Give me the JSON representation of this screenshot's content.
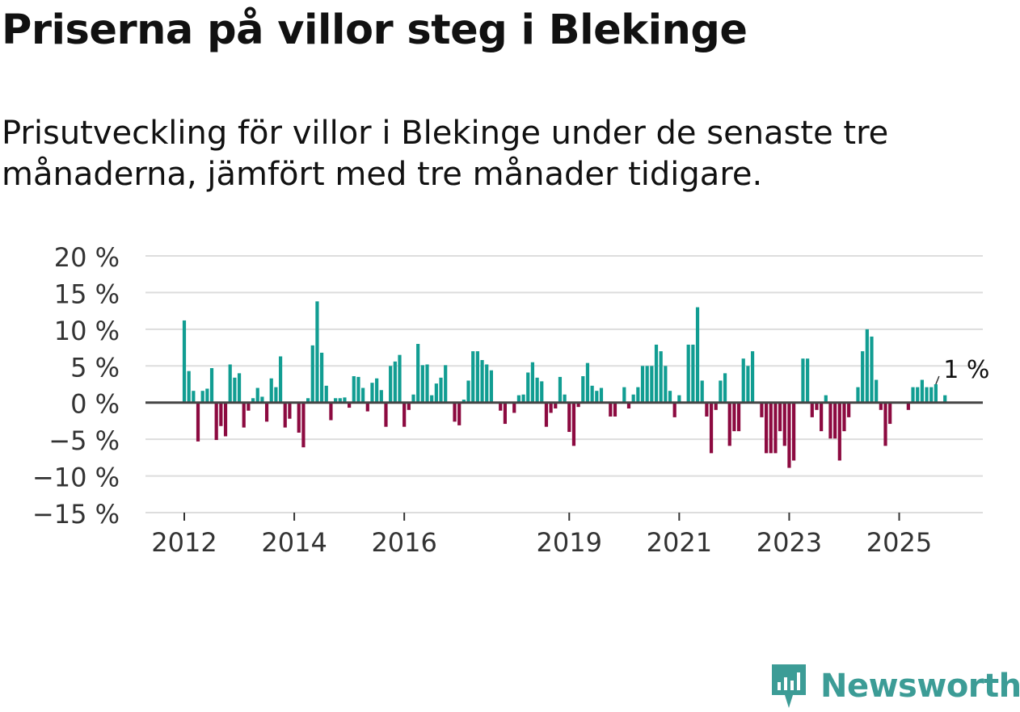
{
  "title": "Priserna på villor steg i Blekinge",
  "subtitle": "Prisutveckling för villor i Blekinge under de senaste tre månaderna, jämfört med tre månader tidigare.",
  "brand": "Newsworthy",
  "colors": {
    "positive": "#119d92",
    "negative": "#8c0a40",
    "grid": "#dddddd",
    "zero": "#444444",
    "brand": "#3c9c96"
  },
  "chart_data": {
    "type": "bar",
    "ylim": [
      -15,
      20
    ],
    "yticks": [
      "20 %",
      "15 %",
      "10 %",
      "5 %",
      "0 %",
      "−5 %",
      "−10 %",
      "−15 %"
    ],
    "xticks": [
      "2012",
      "2014",
      "2016",
      "2019",
      "2021",
      "2023",
      "2025"
    ],
    "xtick_positions": [
      0,
      24,
      48,
      84,
      108,
      132,
      156
    ],
    "annotation": "1 %",
    "start": "2012-01",
    "unit": "%",
    "values": [
      11.2,
      4.3,
      1.6,
      -5.3,
      1.6,
      1.9,
      4.7,
      -5.1,
      -3.2,
      -4.6,
      5.2,
      3.4,
      4,
      -3.4,
      -1.1,
      0.6,
      2,
      0.8,
      -2.6,
      3.3,
      2.1,
      6.3,
      -3.4,
      -2.2,
      0,
      -4.1,
      -6.1,
      0.6,
      7.8,
      13.8,
      6.8,
      2.3,
      -2.4,
      0.6,
      0.6,
      0.7,
      -0.7,
      3.6,
      3.5,
      2,
      -1.2,
      2.7,
      3.3,
      1.7,
      -3.3,
      5,
      5.6,
      6.5,
      -3.3,
      -1,
      1.1,
      8,
      5.1,
      5.2,
      1,
      2.6,
      3.4,
      5.1,
      0,
      -2.6,
      -3.1,
      0.4,
      3,
      7,
      7,
      5.8,
      5.2,
      4.4,
      0,
      -1.1,
      -2.9,
      0,
      -1.4,
      1,
      1.1,
      4.1,
      5.5,
      3.4,
      2.9,
      -3.3,
      -1.4,
      -0.8,
      3.5,
      1.1,
      -4,
      -5.9,
      -0.6,
      3.6,
      5.4,
      2.3,
      1.6,
      2,
      0,
      -1.9,
      -1.9,
      0,
      2.1,
      -0.8,
      1.1,
      2.1,
      5,
      5,
      5,
      7.9,
      7,
      5,
      1.6,
      -2,
      1,
      0,
      7.9,
      7.9,
      13,
      3,
      -1.9,
      -6.9,
      -1,
      3,
      4,
      -5.9,
      -3.9,
      -3.9,
      6,
      5,
      7,
      0,
      -2,
      -6.9,
      -6.9,
      -6.9,
      -3.9,
      -5.9,
      -8.9,
      -7.9,
      0,
      6,
      6,
      -2,
      -1,
      -3.9,
      1,
      -4.9,
      -4.9,
      -7.9,
      -3.9,
      -2,
      0,
      2.1,
      7,
      10,
      9,
      3.1,
      -1,
      -5.9,
      -2.9,
      0,
      0,
      0,
      -1,
      2.1,
      2.1,
      3.1,
      2.1,
      2.1,
      2.5,
      0,
      1
    ]
  }
}
